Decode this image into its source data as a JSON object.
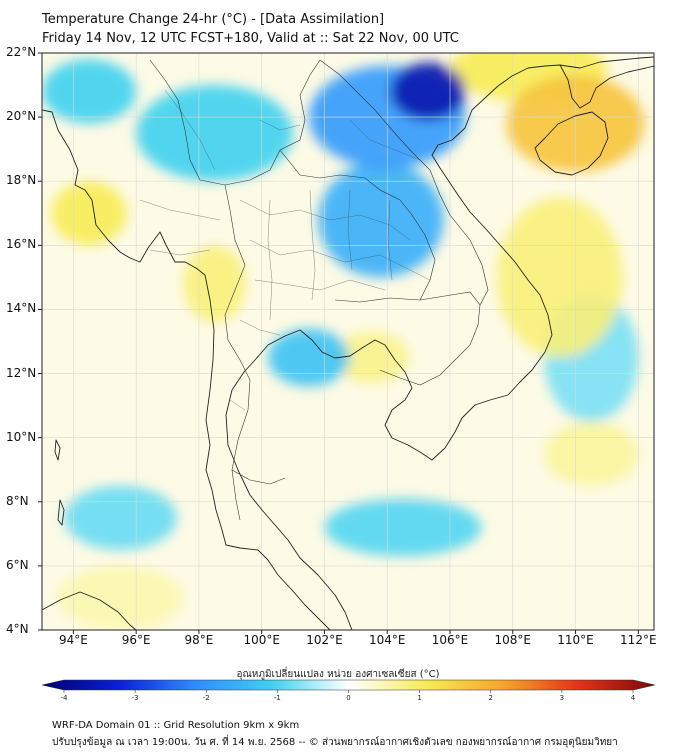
{
  "header": {
    "title_line1": "Temperature Change 24-hr (°C) - [Data Assimilation]",
    "title_line2": "Friday 14 Nov, 12 UTC FCST+180, Valid at :: Sat 22 Nov, 00 UTC"
  },
  "map": {
    "lat_range": [
      4,
      22
    ],
    "lon_range": [
      93,
      112.5
    ],
    "lat_ticks": [
      {
        "value": 22,
        "label": "22°N"
      },
      {
        "value": 20,
        "label": "20°N"
      },
      {
        "value": 18,
        "label": "18°N"
      },
      {
        "value": 16,
        "label": "16°N"
      },
      {
        "value": 14,
        "label": "14°N"
      },
      {
        "value": 12,
        "label": "12°N"
      },
      {
        "value": 10,
        "label": "10°N"
      },
      {
        "value": 8,
        "label": "8°N"
      },
      {
        "value": 6,
        "label": "6°N"
      },
      {
        "value": 4,
        "label": "4°N"
      }
    ],
    "lon_ticks": [
      {
        "value": 94,
        "label": "94°E"
      },
      {
        "value": 96,
        "label": "96°E"
      },
      {
        "value": 98,
        "label": "98°E"
      },
      {
        "value": 100,
        "label": "100°E"
      },
      {
        "value": 102,
        "label": "102°E"
      },
      {
        "value": 104,
        "label": "104°E"
      },
      {
        "value": 106,
        "label": "106°E"
      },
      {
        "value": 108,
        "label": "108°E"
      },
      {
        "value": 110,
        "label": "110°E"
      },
      {
        "value": 112,
        "label": "112°E"
      }
    ],
    "anomalies": [
      {
        "name": "strong-cold-north-vietnam",
        "lon": 105.3,
        "lat": 20.8,
        "r_lon": 1.2,
        "r_lat": 0.9,
        "value": -3.4
      },
      {
        "name": "cold-laos-north",
        "lon": 104.0,
        "lat": 20.0,
        "r_lon": 2.5,
        "r_lat": 1.6,
        "value": -1.8
      },
      {
        "name": "cold-northeast-thailand",
        "lon": 103.8,
        "lat": 16.8,
        "r_lon": 2.0,
        "r_lat": 1.8,
        "value": -1.5
      },
      {
        "name": "cold-gulf-west",
        "lon": 101.5,
        "lat": 12.5,
        "r_lon": 1.3,
        "r_lat": 0.9,
        "value": -1.2
      },
      {
        "name": "cold-myanmar-north",
        "lon": 98.5,
        "lat": 19.5,
        "r_lon": 2.5,
        "r_lat": 1.5,
        "value": -1.0
      },
      {
        "name": "cold-andaman",
        "lon": 94.5,
        "lat": 20.8,
        "r_lon": 1.5,
        "r_lat": 1.0,
        "value": -1.0
      },
      {
        "name": "cold-malay-sea",
        "lon": 104.5,
        "lat": 7.2,
        "r_lon": 2.5,
        "r_lat": 0.9,
        "value": -0.9
      },
      {
        "name": "cold-sw-sea",
        "lon": 95.5,
        "lat": 7.5,
        "r_lon": 1.8,
        "r_lat": 1.0,
        "value": -0.8
      },
      {
        "name": "cold-east-sea",
        "lon": 110.5,
        "lat": 12.5,
        "r_lon": 1.5,
        "r_lat": 2.0,
        "value": -0.7
      },
      {
        "name": "warm-hainan",
        "lon": 110.0,
        "lat": 19.8,
        "r_lon": 2.2,
        "r_lat": 1.5,
        "value": 1.6
      },
      {
        "name": "warm-southeast-china",
        "lon": 108.5,
        "lat": 21.5,
        "r_lon": 2.5,
        "r_lat": 1.0,
        "value": 1.0
      },
      {
        "name": "warm-myanmar-coast",
        "lon": 94.5,
        "lat": 17.0,
        "r_lon": 1.2,
        "r_lat": 1.0,
        "value": 1.0
      },
      {
        "name": "warm-thailand-west",
        "lon": 98.5,
        "lat": 14.8,
        "r_lon": 1.0,
        "r_lat": 1.2,
        "value": 0.8
      },
      {
        "name": "warm-vietnam-coast",
        "lon": 109.5,
        "lat": 15.0,
        "r_lon": 2.0,
        "r_lat": 2.5,
        "value": 0.8
      },
      {
        "name": "warm-gulf-east",
        "lon": 103.5,
        "lat": 12.5,
        "r_lon": 1.2,
        "r_lat": 0.8,
        "value": 0.7
      },
      {
        "name": "warm-south-east",
        "lon": 110.5,
        "lat": 9.5,
        "r_lon": 1.5,
        "r_lat": 1.0,
        "value": 0.6
      },
      {
        "name": "warm-sw-corner",
        "lon": 95.5,
        "lat": 5.0,
        "r_lon": 2.0,
        "r_lat": 1.0,
        "value": 0.5
      }
    ]
  },
  "colorbar": {
    "label": "อุณหภูมิเปลี่ยนแปลง หน่วย องศาเซลเซียส (°C)",
    "range": [
      -4,
      4
    ],
    "ticks": [
      "-4",
      "-3",
      "-2",
      "-1",
      "0",
      "1",
      "2",
      "3",
      "4"
    ],
    "stops": [
      {
        "v": -4,
        "color": "#000070"
      },
      {
        "v": -3,
        "color": "#0a1fd6"
      },
      {
        "v": -2,
        "color": "#2f8cff"
      },
      {
        "v": -1,
        "color": "#3fd0f0"
      },
      {
        "v": -0.3,
        "color": "#c6f2fb"
      },
      {
        "v": 0,
        "color": "#ffffff"
      },
      {
        "v": 0.3,
        "color": "#fdfbd2"
      },
      {
        "v": 1,
        "color": "#f7ec55"
      },
      {
        "v": 2,
        "color": "#f5a72a"
      },
      {
        "v": 3,
        "color": "#e53218"
      },
      {
        "v": 4,
        "color": "#7a0a0a"
      }
    ]
  },
  "footer": {
    "line1": "WRF-DA Domain 01 :: Grid Resolution 9km x 9km",
    "line2": "ปรับปรุงข้อมูล ณ เวลา 19:00น. วัน ศ. ที่ 14 พ.ย. 2568 -- © ส่วนพยากรณ์อากาศเชิงตัวเลข กองพยากรณ์อากาศ กรมอุตุนิยมวิทยา"
  },
  "colors": {
    "background_field": "#fdfbe6",
    "coastline": "#222222",
    "border": "#333333",
    "grid": "#d8d8d8"
  }
}
